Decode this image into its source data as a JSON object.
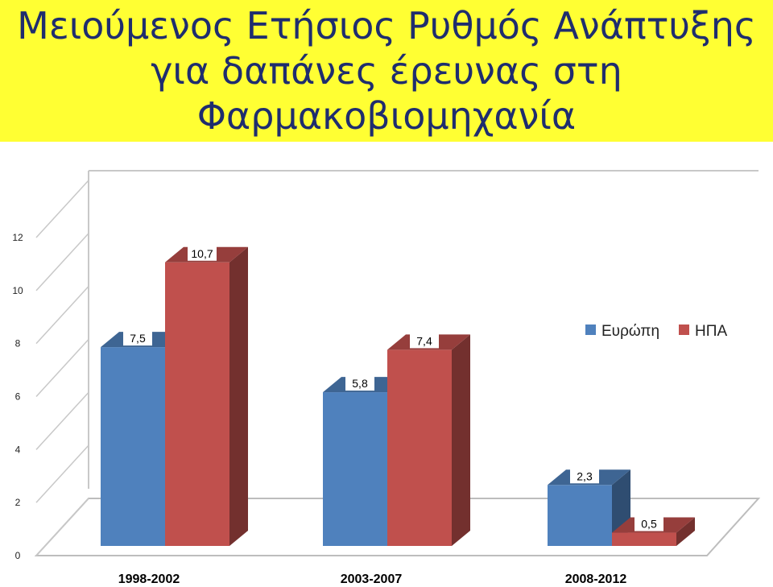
{
  "title_lines": [
    "Μειούμενος Ετήσιος Ρυθμός Ανάπτυξης",
    "για δαπάνες έρευνας στη",
    "Φαρμακοβιομηχανία"
  ],
  "colors": {
    "title_band": "#ffff33",
    "title_text": "#1f2d6e",
    "europe": "#4f81bd",
    "usa": "#c0504d"
  },
  "chart_data": {
    "type": "bar",
    "title": "Μειούμενος Ετήσιος Ρυθμός Ανάπτυξης για δαπάνες έρευνας στη Φαρμακοβιομηχανία",
    "categories": [
      "1998-2002",
      "2003-2007",
      "2008-2012"
    ],
    "series": [
      {
        "name": "Ευρώπη",
        "values": [
          7.5,
          5.8,
          2.3
        ],
        "labels": [
          "7,5",
          "5,8",
          "2,3"
        ]
      },
      {
        "name": "ΗΠΑ",
        "values": [
          10.7,
          7.4,
          0.5
        ],
        "labels": [
          "10,7",
          "7,4",
          "0,5"
        ]
      }
    ],
    "yticks": [
      "0",
      "2",
      "4",
      "6",
      "8",
      "10",
      "12"
    ],
    "ylim": [
      0,
      12
    ],
    "grid": true,
    "legend": "right"
  }
}
